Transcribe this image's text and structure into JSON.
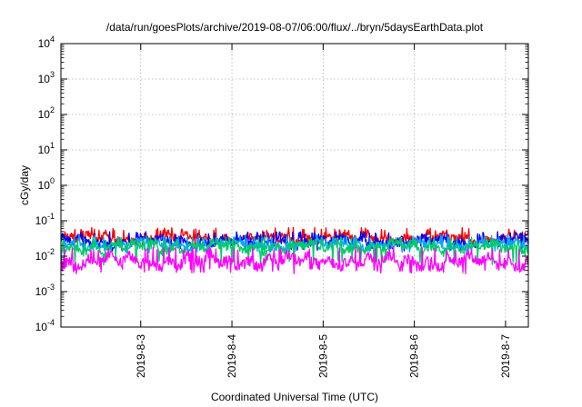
{
  "chart_data": {
    "type": "line",
    "title": "/data/run/goesPlots/archive/2019-08-07/06:00/flux/../bryn/5daysEarthData.plot",
    "xlabel": "Coordinated Universal Time (UTC)",
    "ylabel": "cGy/day",
    "y_scale": "log",
    "ylim": [
      0.0001,
      10000
    ],
    "y_ticks": [
      {
        "value": 0.0001,
        "base": "10",
        "exp": "-4"
      },
      {
        "value": 0.001,
        "base": "10",
        "exp": "-3"
      },
      {
        "value": 0.01,
        "base": "10",
        "exp": "-2"
      },
      {
        "value": 0.1,
        "base": "10",
        "exp": "-1"
      },
      {
        "value": 1,
        "base": "10",
        "exp": "0"
      },
      {
        "value": 10,
        "base": "10",
        "exp": "1"
      },
      {
        "value": 100,
        "base": "10",
        "exp": "2"
      },
      {
        "value": 1000,
        "base": "10",
        "exp": "3"
      },
      {
        "value": 10000,
        "base": "10",
        "exp": "4"
      }
    ],
    "xlim": [
      "2019-08-02T03:00",
      "2019-08-07T06:00"
    ],
    "x_ticks": [
      "2019-8-3",
      "2019-8-4",
      "2019-8-5",
      "2019-8-6",
      "2019-8-7"
    ],
    "x_tick_dates": [
      "2019-08-03T00:00",
      "2019-08-04T00:00",
      "2019-08-05T00:00",
      "2019-08-06T00:00",
      "2019-08-07T00:00"
    ],
    "grid": true,
    "series": [
      {
        "color": "#ff0000",
        "level": 0.033,
        "spread": 0.22,
        "spike_top": 0.065,
        "dip_bottom": 0.02
      },
      {
        "color": "#0000ff",
        "level": 0.026,
        "spread": 0.22,
        "spike_top": 0.05,
        "dip_bottom": 0.014
      },
      {
        "color": "#00aaff",
        "level": 0.021,
        "spread": 0.2,
        "spike_top": 0.04,
        "dip_bottom": 0.012
      },
      {
        "color": "#00cc66",
        "level": 0.018,
        "spread": 0.25,
        "spike_top": 0.035,
        "dip_bottom": 0.0055
      },
      {
        "color": "#ff00ff",
        "level": 0.0072,
        "spread": 0.3,
        "spike_top": 0.018,
        "dip_bottom": 0.0032
      }
    ]
  }
}
